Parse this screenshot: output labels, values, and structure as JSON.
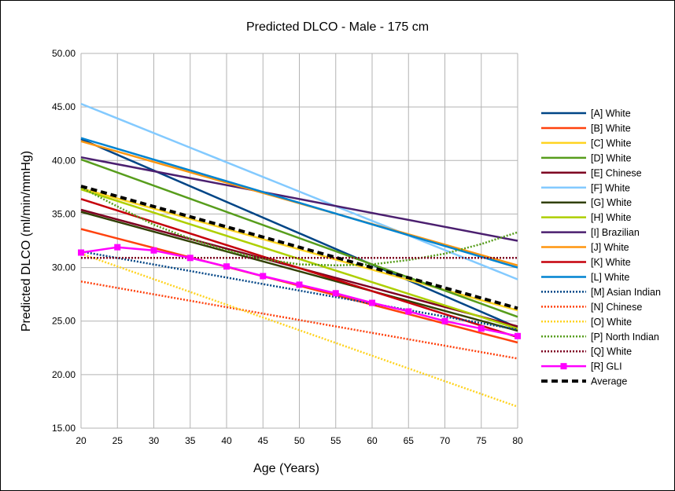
{
  "chart_data": {
    "type": "line",
    "title": "Predicted DLCO - Male - 175 cm",
    "xlabel": "Age (Years)",
    "ylabel": "Predicted DLCO (ml/min/mmHg)",
    "xlim": [
      20,
      80
    ],
    "ylim": [
      15,
      50
    ],
    "x_ticks": [
      "20",
      "25",
      "30",
      "35",
      "40",
      "45",
      "50",
      "55",
      "60",
      "65",
      "70",
      "75",
      "80"
    ],
    "y_ticks": [
      "15.00",
      "20.00",
      "25.00",
      "30.00",
      "35.00",
      "40.00",
      "45.00",
      "50.00"
    ],
    "grid": true,
    "legend_position": "right",
    "series": [
      {
        "name": "[A] White",
        "color": "#004586",
        "dash": "solid",
        "x": [
          20,
          80
        ],
        "y": [
          42.0,
          24.4
        ]
      },
      {
        "name": "[B] White",
        "color": "#ff420e",
        "dash": "solid",
        "x": [
          20,
          80
        ],
        "y": [
          33.6,
          23.0
        ]
      },
      {
        "name": "[C] White",
        "color": "#ffd320",
        "dash": "solid",
        "x": [
          20,
          80
        ],
        "y": [
          37.4,
          26.0
        ]
      },
      {
        "name": "[D] White",
        "color": "#579d1c",
        "dash": "solid",
        "x": [
          20,
          80
        ],
        "y": [
          40.1,
          25.4
        ]
      },
      {
        "name": "[E] Chinese",
        "color": "#7e0021",
        "dash": "solid",
        "x": [
          20,
          80
        ],
        "y": [
          35.4,
          24.5
        ]
      },
      {
        "name": "[F] White",
        "color": "#83caff",
        "dash": "solid",
        "x": [
          20,
          80
        ],
        "y": [
          45.3,
          28.9
        ]
      },
      {
        "name": "[G] White",
        "color": "#314004",
        "dash": "solid",
        "x": [
          20,
          80
        ],
        "y": [
          35.2,
          24.1
        ]
      },
      {
        "name": "[H] White",
        "color": "#aecf00",
        "dash": "solid",
        "x": [
          20,
          80
        ],
        "y": [
          37.3,
          24.3
        ]
      },
      {
        "name": "[I] Brazilian",
        "color": "#4b1f6f",
        "dash": "solid",
        "x": [
          20,
          80
        ],
        "y": [
          40.3,
          32.5
        ]
      },
      {
        "name": "[J] White",
        "color": "#ff950e",
        "dash": "solid",
        "x": [
          20,
          80
        ],
        "y": [
          41.8,
          30.2
        ]
      },
      {
        "name": "[K] White",
        "color": "#c5000b",
        "dash": "solid",
        "x": [
          20,
          80
        ],
        "y": [
          36.4,
          23.5
        ]
      },
      {
        "name": "[L] White",
        "color": "#0084d1",
        "dash": "solid",
        "x": [
          20,
          80
        ],
        "y": [
          42.1,
          30.0
        ]
      },
      {
        "name": "[M] Asian Indian",
        "color": "#004586",
        "dash": "dotted",
        "x": [
          20,
          80
        ],
        "y": [
          31.5,
          24.2
        ]
      },
      {
        "name": "[N] Chinese",
        "color": "#ff420e",
        "dash": "dotted",
        "x": [
          20,
          80
        ],
        "y": [
          28.7,
          21.5
        ]
      },
      {
        "name": "[O] White",
        "color": "#ffd320",
        "dash": "dotted",
        "x": [
          20,
          80
        ],
        "y": [
          31.3,
          17.0
        ]
      },
      {
        "name": "[P] North Indian",
        "color": "#579d1c",
        "dash": "dotted",
        "x": [
          20,
          25,
          30,
          35,
          40,
          45,
          50,
          55,
          60,
          65,
          70,
          75,
          80
        ],
        "y": [
          37.5,
          35.7,
          34.0,
          32.7,
          31.6,
          30.8,
          30.3,
          30.2,
          30.3,
          30.7,
          31.3,
          32.2,
          33.3
        ]
      },
      {
        "name": "[Q] White",
        "color": "#7e0021",
        "dash": "dotted",
        "x": [
          20,
          80
        ],
        "y": [
          30.9,
          30.9
        ]
      },
      {
        "name": "[R] GLI",
        "color": "#ff00ff",
        "dash": "solid",
        "marker": "square",
        "x": [
          20,
          25,
          30,
          35,
          40,
          45,
          50,
          55,
          60,
          65,
          70,
          75,
          80
        ],
        "y": [
          31.4,
          31.9,
          31.6,
          30.9,
          30.1,
          29.2,
          28.4,
          27.6,
          26.7,
          25.9,
          25.0,
          24.3,
          23.6
        ]
      },
      {
        "name": "Average",
        "color": "#000000",
        "dash": "dashed",
        "x": [
          20,
          80
        ],
        "y": [
          37.6,
          26.2
        ]
      }
    ]
  }
}
